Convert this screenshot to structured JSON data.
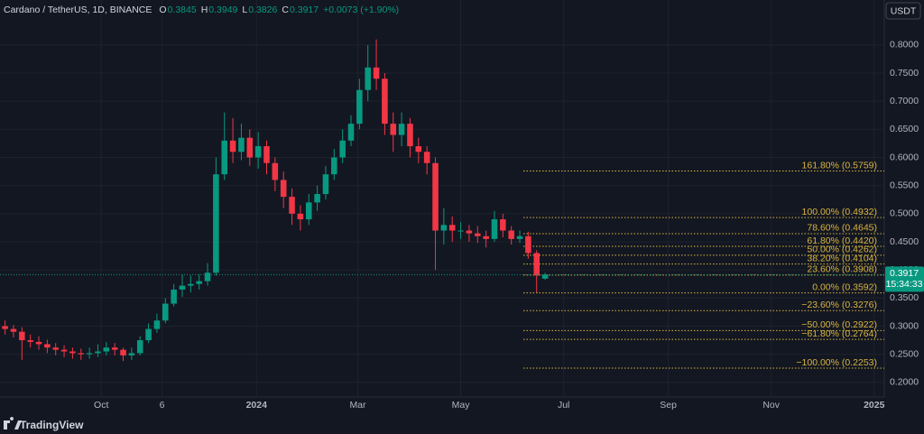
{
  "chart_data": {
    "type": "candlestick",
    "title": "Cardano / TetherUS, 1D, BINANCE",
    "ohlc": [
      {
        "label": "O",
        "value": 0.3845
      },
      {
        "label": "H",
        "value": 0.3949
      },
      {
        "label": "L",
        "value": 0.3826
      },
      {
        "label": "C",
        "value": 0.3917
      }
    ],
    "change": "+0.0073 (+1.90%)",
    "currency": "USDT",
    "last_price": 0.3917,
    "countdown": "15:34:33",
    "colors": {
      "up": "#089981",
      "down": "#f23645",
      "fib": "#d9b43f"
    },
    "xlim": [
      -60,
      464
    ],
    "xticks": [
      {
        "value": 0,
        "label": "Oct"
      },
      {
        "value": 36,
        "label": "6"
      },
      {
        "value": 92,
        "label": "2024"
      },
      {
        "value": 152,
        "label": "Mar"
      },
      {
        "value": 213,
        "label": "May"
      },
      {
        "value": 274,
        "label": "Jul"
      },
      {
        "value": 336,
        "label": "Sep"
      },
      {
        "value": 397,
        "label": "Nov"
      },
      {
        "value": 458,
        "label": "2025"
      }
    ],
    "ylim": [
      0.174,
      0.88
    ],
    "yticks": [
      {
        "value": 0.2,
        "label": "0.2000"
      },
      {
        "value": 0.25,
        "label": "0.2500"
      },
      {
        "value": 0.3,
        "label": "0.3000"
      },
      {
        "value": 0.35,
        "label": "0.3500"
      },
      {
        "value": 0.4,
        "label": "0.4000"
      },
      {
        "value": 0.45,
        "label": "0.4500"
      },
      {
        "value": 0.5,
        "label": "0.5000"
      },
      {
        "value": 0.55,
        "label": "0.5500"
      },
      {
        "value": 0.6,
        "label": "0.6000"
      },
      {
        "value": 0.65,
        "label": "0.6500"
      },
      {
        "value": 0.7,
        "label": "0.7000"
      },
      {
        "value": 0.75,
        "label": "0.7500"
      },
      {
        "value": 0.8,
        "label": "0.8000"
      }
    ],
    "candles": {
      "x": [
        -57,
        -52,
        -47,
        -42,
        -37,
        -32,
        -27,
        -22,
        -17,
        -12,
        -7,
        -2,
        3,
        8,
        13,
        18,
        23,
        28,
        33,
        38,
        43,
        48,
        53,
        58,
        63,
        68,
        73,
        78,
        83,
        88,
        93,
        98,
        103,
        108,
        113,
        118,
        123,
        128,
        133,
        138,
        143,
        148,
        153,
        158,
        163,
        168,
        173,
        178,
        183,
        188,
        193,
        198,
        203,
        208,
        213,
        218,
        223,
        228,
        233,
        238,
        243,
        248,
        253,
        258,
        263
      ],
      "open": [
        0.3,
        0.295,
        0.29,
        0.275,
        0.272,
        0.268,
        0.262,
        0.258,
        0.255,
        0.252,
        0.25,
        0.252,
        0.255,
        0.262,
        0.258,
        0.248,
        0.252,
        0.275,
        0.295,
        0.31,
        0.34,
        0.365,
        0.372,
        0.375,
        0.38,
        0.395,
        0.57,
        0.63,
        0.61,
        0.635,
        0.6,
        0.62,
        0.59,
        0.56,
        0.53,
        0.5,
        0.49,
        0.52,
        0.535,
        0.57,
        0.6,
        0.63,
        0.66,
        0.72,
        0.76,
        0.74,
        0.66,
        0.64,
        0.66,
        0.62,
        0.61,
        0.59,
        0.47,
        0.48,
        0.47,
        0.47,
        0.465,
        0.46,
        0.455,
        0.49,
        0.47,
        0.455,
        0.46,
        0.43,
        0.3845
      ],
      "high": [
        0.31,
        0.302,
        0.298,
        0.285,
        0.282,
        0.276,
        0.27,
        0.266,
        0.262,
        0.26,
        0.262,
        0.268,
        0.272,
        0.27,
        0.262,
        0.262,
        0.282,
        0.305,
        0.322,
        0.35,
        0.375,
        0.392,
        0.39,
        0.392,
        0.412,
        0.6,
        0.68,
        0.67,
        0.66,
        0.65,
        0.645,
        0.63,
        0.6,
        0.575,
        0.545,
        0.515,
        0.535,
        0.55,
        0.585,
        0.615,
        0.65,
        0.675,
        0.74,
        0.8,
        0.81,
        0.75,
        0.68,
        0.68,
        0.67,
        0.635,
        0.62,
        0.6,
        0.51,
        0.495,
        0.485,
        0.48,
        0.478,
        0.47,
        0.505,
        0.5,
        0.478,
        0.47,
        0.468,
        0.435,
        0.3949
      ],
      "low": [
        0.285,
        0.28,
        0.24,
        0.262,
        0.258,
        0.252,
        0.248,
        0.245,
        0.242,
        0.24,
        0.242,
        0.245,
        0.248,
        0.248,
        0.238,
        0.24,
        0.248,
        0.27,
        0.288,
        0.305,
        0.335,
        0.352,
        0.36,
        0.365,
        0.372,
        0.39,
        0.56,
        0.59,
        0.595,
        0.585,
        0.58,
        0.57,
        0.54,
        0.51,
        0.48,
        0.47,
        0.48,
        0.505,
        0.525,
        0.56,
        0.59,
        0.62,
        0.65,
        0.7,
        0.72,
        0.64,
        0.61,
        0.62,
        0.6,
        0.59,
        0.57,
        0.4,
        0.445,
        0.45,
        0.455,
        0.45,
        0.448,
        0.44,
        0.45,
        0.458,
        0.445,
        0.448,
        0.42,
        0.36,
        0.3826
      ],
      "close": [
        0.295,
        0.29,
        0.275,
        0.272,
        0.268,
        0.262,
        0.258,
        0.255,
        0.252,
        0.25,
        0.252,
        0.255,
        0.262,
        0.258,
        0.248,
        0.252,
        0.275,
        0.295,
        0.31,
        0.34,
        0.365,
        0.372,
        0.375,
        0.38,
        0.395,
        0.57,
        0.63,
        0.61,
        0.635,
        0.6,
        0.62,
        0.59,
        0.56,
        0.53,
        0.5,
        0.49,
        0.52,
        0.535,
        0.57,
        0.6,
        0.63,
        0.66,
        0.72,
        0.76,
        0.74,
        0.66,
        0.64,
        0.66,
        0.62,
        0.61,
        0.59,
        0.47,
        0.48,
        0.47,
        0.47,
        0.465,
        0.46,
        0.455,
        0.49,
        0.47,
        0.455,
        0.46,
        0.43,
        0.39,
        0.3917
      ]
    },
    "fib_levels": [
      {
        "label": "161.80% (0.5759)",
        "value": 0.5759
      },
      {
        "label": "100.00% (0.4932)",
        "value": 0.4932
      },
      {
        "label": "78.60% (0.4645)",
        "value": 0.4645
      },
      {
        "label": "61.80% (0.4420)",
        "value": 0.442
      },
      {
        "label": "50.00% (0.4262)",
        "value": 0.4262
      },
      {
        "label": "38.20% (0.4104)",
        "value": 0.4104
      },
      {
        "label": "23.60% (0.3908)",
        "value": 0.3908
      },
      {
        "label": "0.00% (0.3592)",
        "value": 0.3592
      },
      {
        "label": "−23.60% (0.3276)",
        "value": 0.3276
      },
      {
        "label": "−50.00% (0.2922)",
        "value": 0.2922
      },
      {
        "label": "−61.80% (0.2764)",
        "value": 0.2764
      },
      {
        "label": "−100.00% (0.2253)",
        "value": 0.2253
      }
    ]
  },
  "branding": "TradingView"
}
